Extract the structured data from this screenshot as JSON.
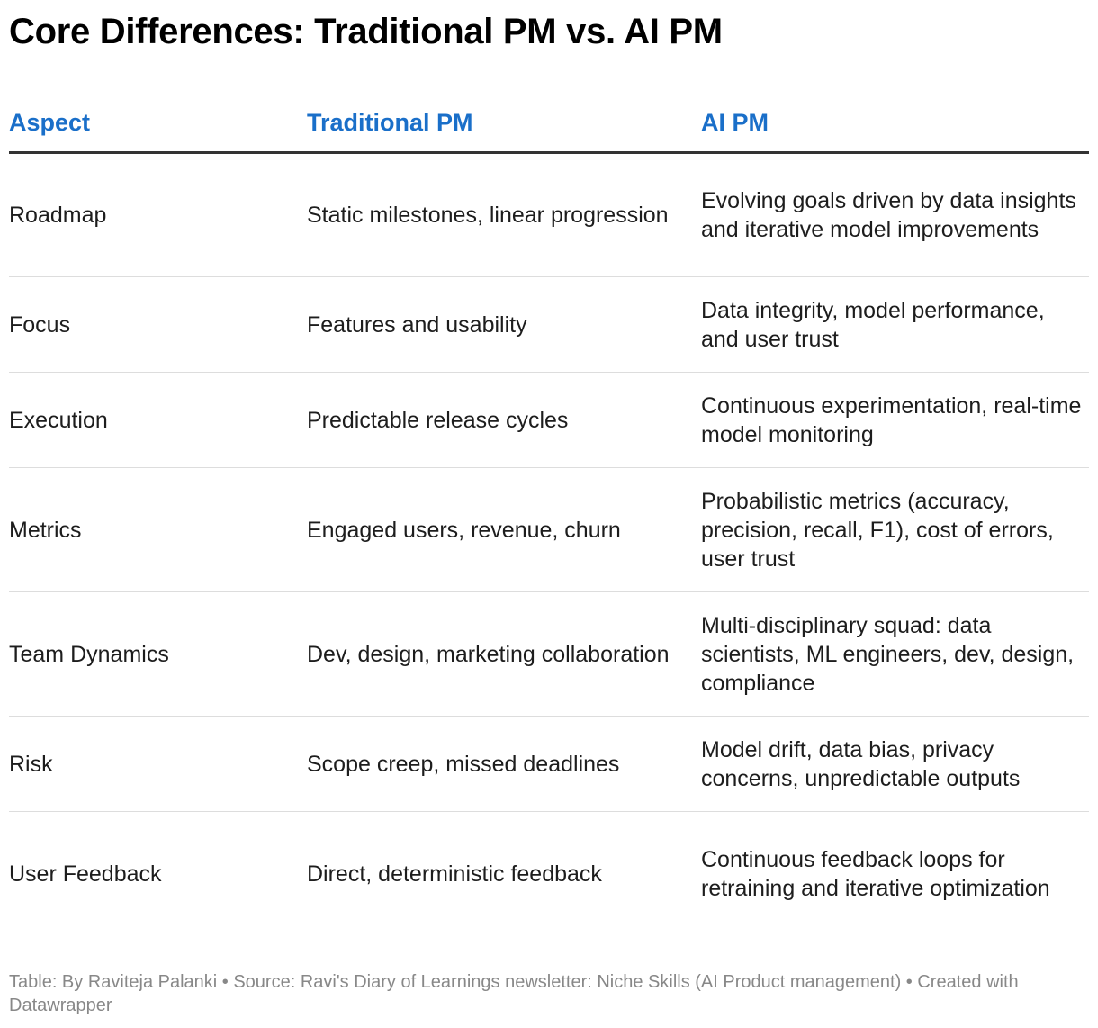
{
  "title": "Core Differences: Traditional PM vs. AI PM",
  "columns": [
    "Aspect",
    "Traditional PM",
    "AI PM"
  ],
  "rows": [
    [
      "Roadmap",
      "Static milestones, linear progression",
      "Evolving goals driven by data insights and iterative model improvements"
    ],
    [
      "Focus",
      "Features and usability",
      "Data integrity, model performance, and user trust"
    ],
    [
      "Execution",
      "Predictable release cycles",
      "Continuous experimentation, real-time model monitoring"
    ],
    [
      "Metrics",
      "Engaged users, revenue, churn",
      "Probabilistic metrics (accuracy, precision, recall, F1), cost of errors, user trust"
    ],
    [
      "Team Dynamics",
      "Dev, design, marketing collaboration",
      "Multi-disciplinary squad: data scientists, ML engineers, dev, design, compliance"
    ],
    [
      "Risk",
      "Scope creep, missed deadlines",
      "Model drift, data bias, privacy concerns, unpredictable outputs"
    ],
    [
      "User Feedback",
      "Direct, deterministic feedback",
      "Continuous feedback loops for retraining and iterative optimization"
    ]
  ],
  "footer": "Table: By Raviteja Palanki  • Source: Ravi's Diary of Learnings newsletter: Niche Skills (AI Product management) • Created with Datawrapper",
  "colors": {
    "header_text": "#1a6fc9",
    "footer_text": "#888888"
  }
}
